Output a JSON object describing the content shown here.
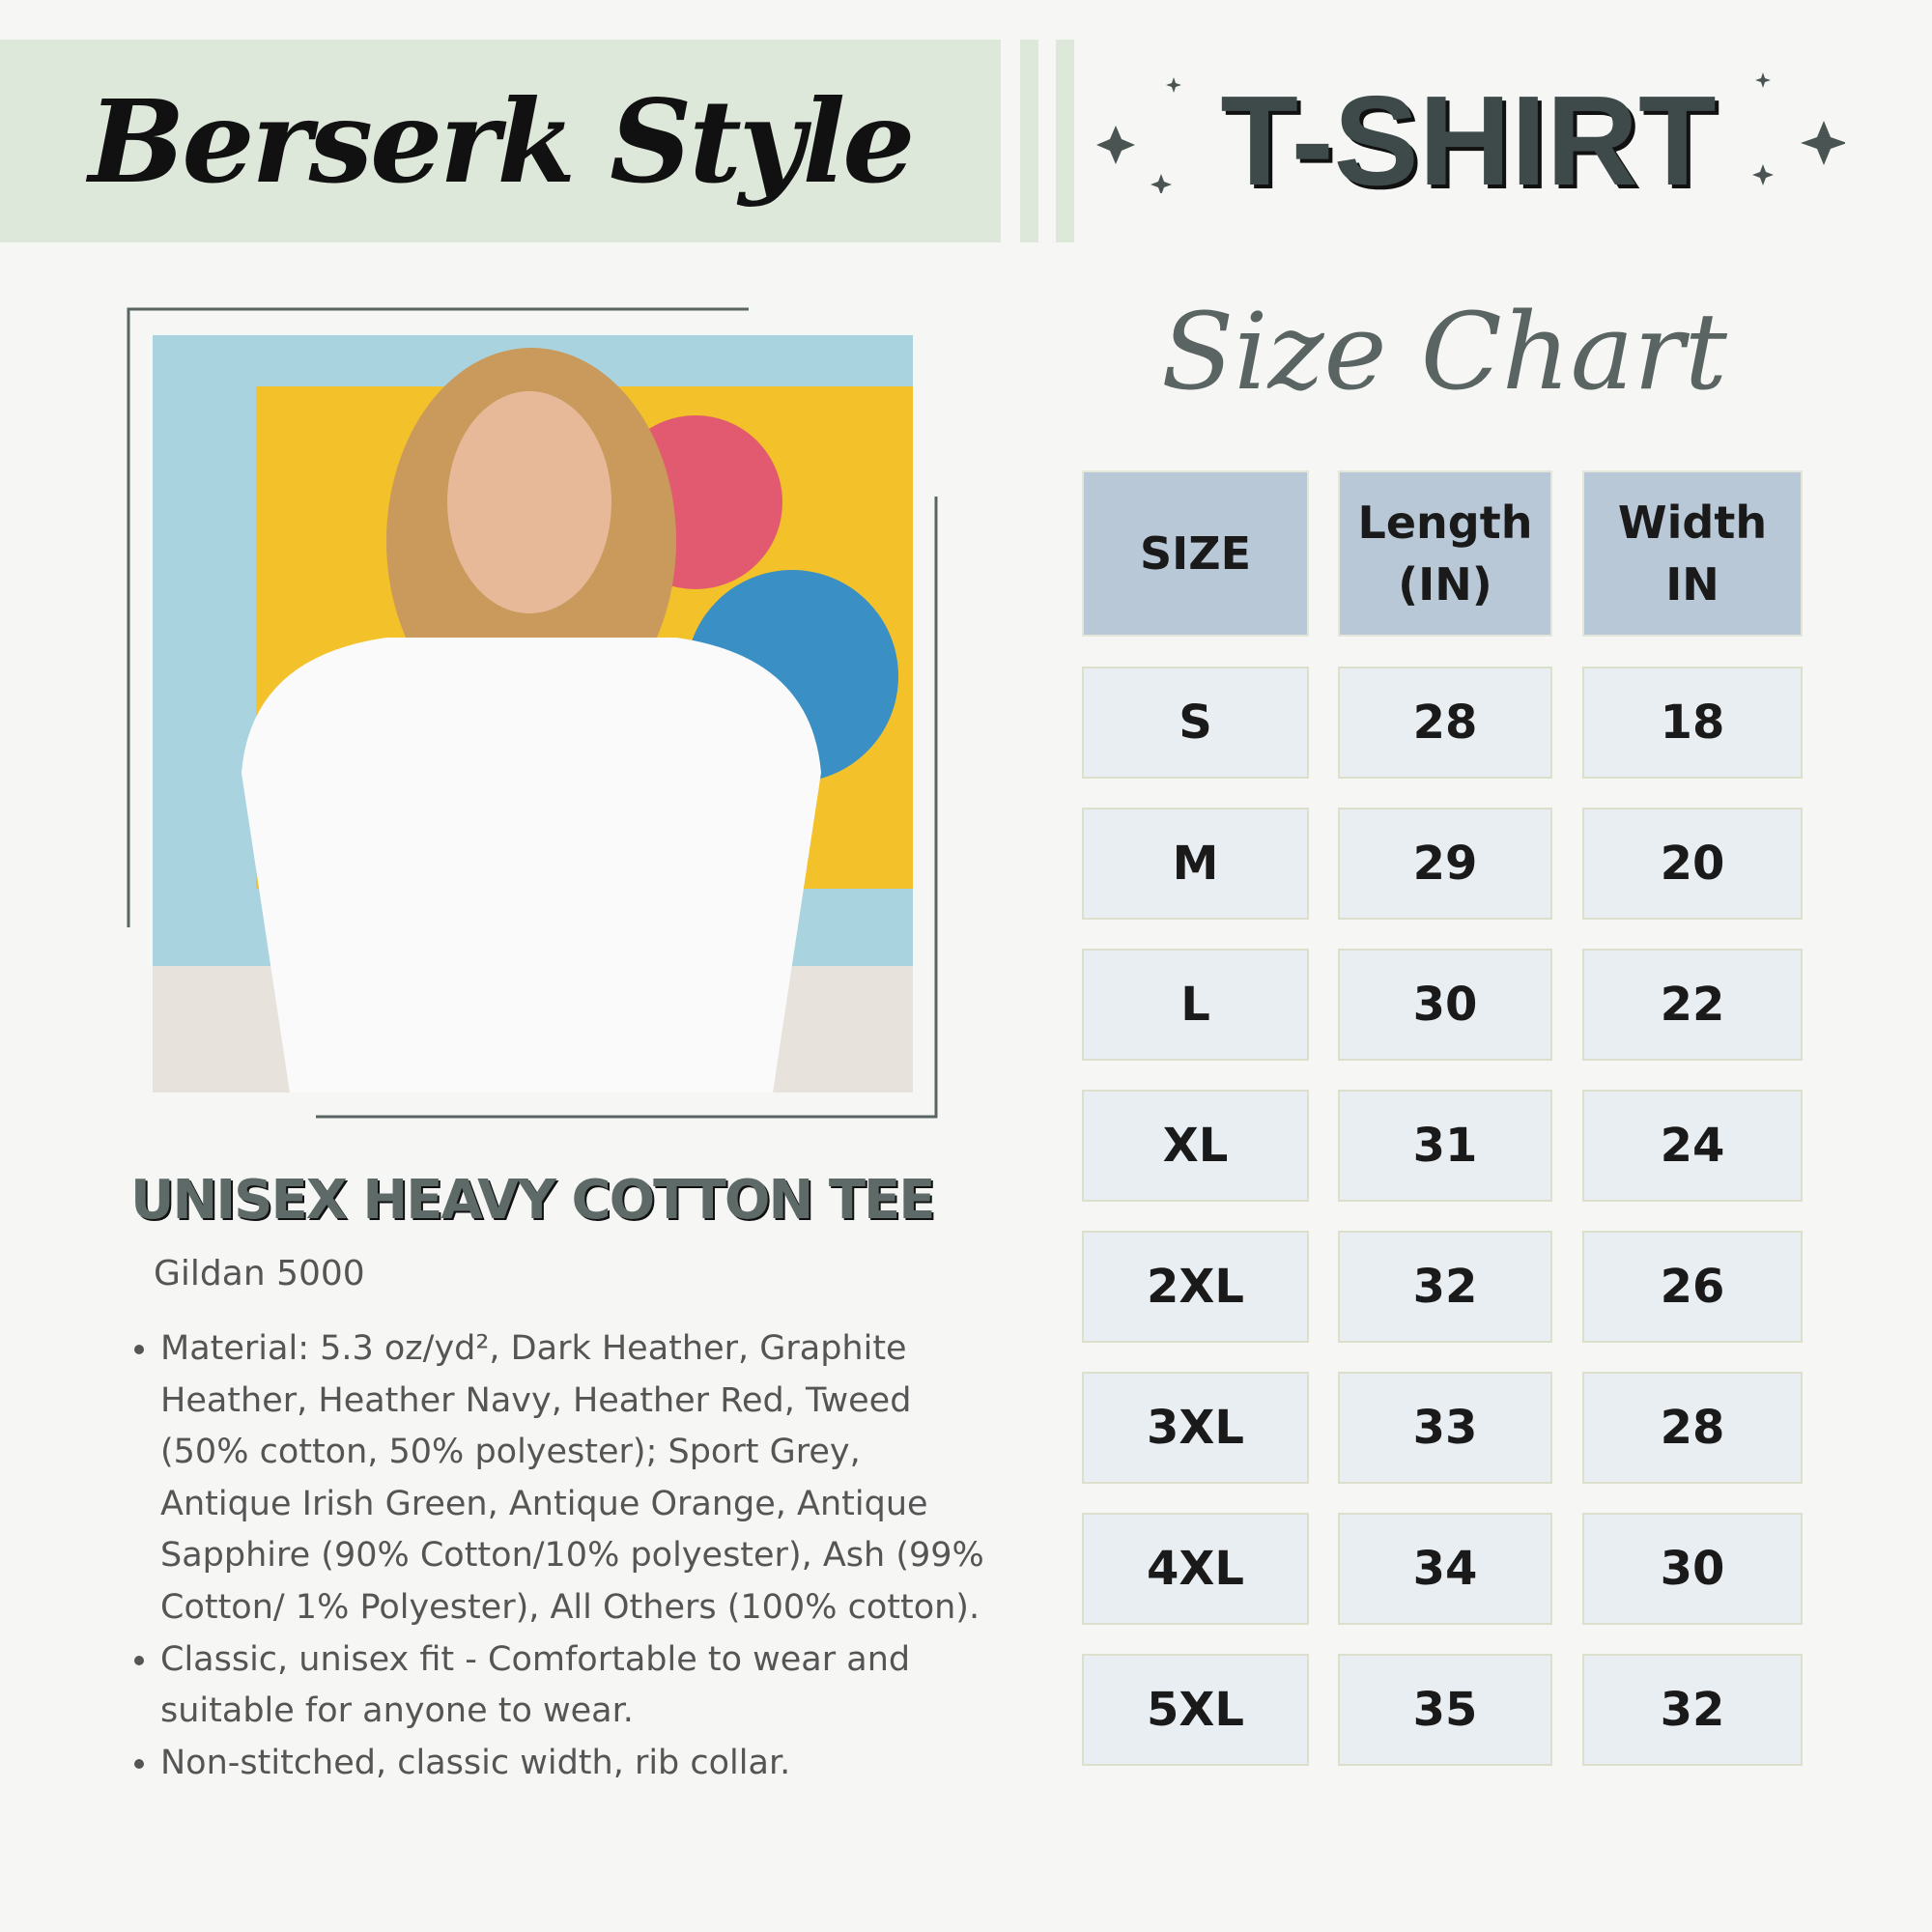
{
  "header": {
    "brand": "Berserk Style",
    "product_type": "T-SHIRT",
    "chart_title": "Size Chart"
  },
  "table": {
    "columns": [
      "SIZE",
      "Length (IN)",
      "Width IN"
    ],
    "rows": [
      [
        "S",
        28,
        18
      ],
      [
        "M",
        29,
        20
      ],
      [
        "L",
        30,
        22
      ],
      [
        "XL",
        31,
        24
      ],
      [
        "2XL",
        32,
        26
      ],
      [
        "3XL",
        33,
        28
      ],
      [
        "4XL",
        34,
        30
      ],
      [
        "5XL",
        35,
        32
      ]
    ]
  },
  "product": {
    "title": "UNISEX HEAVY COTTON TEE",
    "model": "Gildan 5000",
    "features": [
      "Material: 5.3 oz/yd², Dark Heather, Graphite Heather, Heather Navy, Heather Red, Tweed (50% cotton, 50% polyester); Sport Grey, Antique Irish Green, Antique Orange, Antique Sapphire (90% Cotton/10% polyester), Ash (99% Cotton/ 1% Polyester), All Others (100% cotton).",
      "Classic, unisex fit - Comfortable to wear and suitable for anyone to wear.",
      "Non-stitched, classic width, rib collar."
    ]
  }
}
